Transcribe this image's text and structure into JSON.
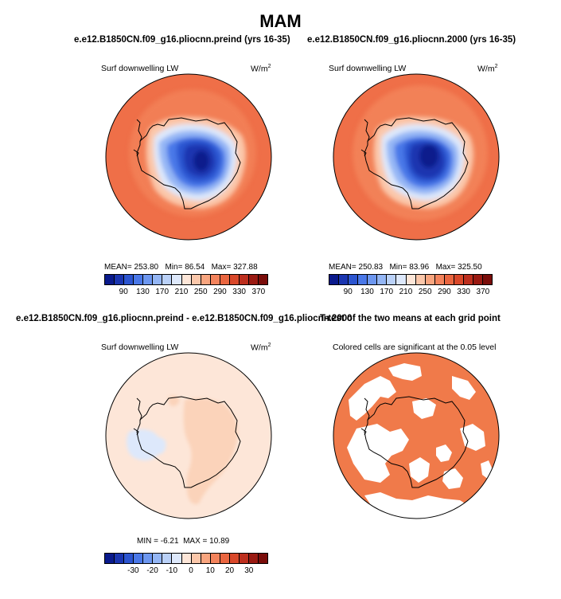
{
  "figure": {
    "title": "MAM",
    "panels": [
      {
        "title": "e.e12.B1850CN.f09_g16.pliocnn.preind (yrs 16-35)",
        "variable": "Surf downwelling LW",
        "units_base": "W/m",
        "units_exp": "2",
        "stats": {
          "mean_label": "MEAN=",
          "mean": "253.80",
          "min_label": "Min=",
          "min": "86.54",
          "max_label": "Max=",
          "max": "327.88"
        }
      },
      {
        "title": "e.e12.B1850CN.f09_g16.pliocnn.2000 (yrs 16-35)",
        "variable": "Surf downwelling LW",
        "units_base": "W/m",
        "units_exp": "2",
        "stats": {
          "mean_label": "MEAN=",
          "mean": "250.83",
          "min_label": "Min=",
          "min": "83.96",
          "max_label": "Max=",
          "max": "325.50"
        }
      },
      {
        "title": "e.e12.B1850CN.f09_g16.pliocnn.preind - e.e12.B1850CN.f09_g16.pliocnn.2000",
        "variable": "Surf downwelling LW",
        "units_base": "W/m",
        "units_exp": "2",
        "stats": {
          "min_label": "MIN =",
          "min": "-6.21",
          "max_label": "MAX =",
          "max": "10.89"
        }
      },
      {
        "title": "T-test of the two means at each grid point",
        "variable": "Colored cells are significant at the 0.05 level"
      }
    ],
    "colorbar_abs": {
      "colors": [
        "#0a1a8c",
        "#1a35b0",
        "#2c55d0",
        "#4a78e8",
        "#6d97f0",
        "#94b6f5",
        "#bad1f8",
        "#dde8fb",
        "#fde6d8",
        "#fbc7aa",
        "#f8a57f",
        "#f3835c",
        "#ea6640",
        "#d9482a",
        "#bd2f1e",
        "#9a1a12",
        "#7a0d0a"
      ],
      "tick_labels": [
        "90",
        "130",
        "170",
        "210",
        "250",
        "290",
        "330",
        "370"
      ]
    },
    "colorbar_diff": {
      "colors": [
        "#0a1a8c",
        "#1a35b0",
        "#2c55d0",
        "#4a78e8",
        "#6d97f0",
        "#94b6f5",
        "#bad1f8",
        "#dde8fb",
        "#fde6d8",
        "#fbc7aa",
        "#f8a57f",
        "#f3835c",
        "#ea6640",
        "#d9482a",
        "#bd2f1e",
        "#9a1a12",
        "#7a0d0a"
      ],
      "tick_labels": [
        "-30",
        "-20",
        "-10",
        "0",
        "10",
        "20",
        "30"
      ]
    },
    "colors": {
      "ocean_warm": "#ef6f48",
      "ring_light": "#f4895f",
      "peach": "#fbc7aa",
      "diff_background": "#fde6d8",
      "diff_positive": "#fbd3ba",
      "diff_negative": "#dde8fb",
      "significant": "#f07a4a",
      "deep_blue": "#0a1a8c"
    }
  },
  "chart_data": [
    {
      "type": "heatmap",
      "title": "e.e12.B1850CN.f09_g16.pliocnn.preind (yrs 16-35)",
      "variable": "Surf downwelling LW",
      "units": "W/m2",
      "projection": "south polar stereographic",
      "stats": {
        "mean": 253.8,
        "min": 86.54,
        "max": 327.88
      },
      "colorbar_ticks": [
        90,
        130,
        170,
        210,
        250,
        290,
        330,
        370
      ]
    },
    {
      "type": "heatmap",
      "title": "e.e12.B1850CN.f09_g16.pliocnn.2000 (yrs 16-35)",
      "variable": "Surf downwelling LW",
      "units": "W/m2",
      "projection": "south polar stereographic",
      "stats": {
        "mean": 250.83,
        "min": 83.96,
        "max": 325.5
      },
      "colorbar_ticks": [
        90,
        130,
        170,
        210,
        250,
        290,
        330,
        370
      ]
    },
    {
      "type": "heatmap",
      "title": "e.e12.B1850CN.f09_g16.pliocnn.preind - e.e12.B1850CN.f09_g16.pliocnn.2000",
      "variable": "Surf downwelling LW",
      "units": "W/m2",
      "projection": "south polar stereographic",
      "stats": {
        "min": -6.21,
        "max": 10.89
      },
      "colorbar_ticks": [
        -30,
        -20,
        -10,
        0,
        10,
        20,
        30
      ]
    },
    {
      "type": "heatmap",
      "title": "T-test of the two means at each grid point",
      "variable": "Colored cells are significant at the 0.05 level",
      "projection": "south polar stereographic"
    }
  ]
}
